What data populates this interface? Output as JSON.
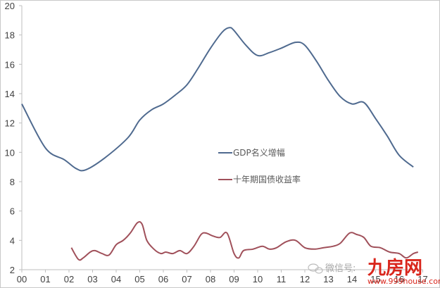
{
  "chart_data": {
    "type": "line",
    "title": "",
    "xlabel": "",
    "ylabel": "",
    "ylim": [
      2,
      20
    ],
    "yticks": [
      2,
      4,
      6,
      8,
      10,
      12,
      14,
      16,
      18,
      20
    ],
    "ytick_labels": [
      "2",
      "4",
      "6",
      "8",
      "10",
      "12",
      "14",
      "16",
      "18",
      "20"
    ],
    "xlim": [
      0,
      17
    ],
    "xticks": [
      0,
      1,
      2,
      3,
      4,
      5,
      6,
      7,
      8,
      9,
      10,
      11,
      12,
      13,
      14,
      15,
      16,
      17
    ],
    "xtick_labels": [
      "00",
      "01",
      "02",
      "03",
      "04",
      "05",
      "06",
      "07",
      "08",
      "09",
      "10",
      "11",
      "12",
      "13",
      "14",
      "15",
      "16",
      "17"
    ],
    "grid": false,
    "legend_position": "center-right (inside plot)",
    "series": [
      {
        "name": "GDP名义增幅",
        "color": "#4f6a8f",
        "x": [
          0,
          1,
          1.8,
          2.3,
          2.7,
          3.5,
          4.5,
          5,
          5.5,
          6,
          6.5,
          7,
          7.5,
          8,
          8.5,
          8.8,
          9,
          9.5,
          10,
          10.5,
          11,
          11.6,
          12,
          12.5,
          13,
          13.5,
          14,
          14.5,
          15,
          15.5,
          16,
          16.6
        ],
        "values": [
          13.3,
          10.3,
          9.5,
          8.9,
          8.8,
          9.6,
          11.0,
          12.2,
          12.9,
          13.3,
          13.9,
          14.6,
          15.8,
          17.1,
          18.2,
          18.5,
          18.3,
          17.3,
          16.6,
          16.8,
          17.1,
          17.5,
          17.3,
          16.2,
          14.9,
          13.8,
          13.3,
          13.4,
          12.3,
          11.1,
          9.8,
          9.0
        ]
      },
      {
        "name": "十年期国债收益率",
        "color": "#a0505a",
        "x": [
          2.1,
          2.4,
          2.6,
          2.9,
          3.1,
          3.4,
          3.7,
          4.0,
          4.3,
          4.6,
          4.9,
          5.1,
          5.3,
          5.6,
          5.9,
          6.1,
          6.4,
          6.7,
          7.0,
          7.3,
          7.6,
          7.8,
          8.1,
          8.4,
          8.7,
          9.0,
          9.2,
          9.4,
          9.8,
          10.2,
          10.5,
          10.8,
          11.2,
          11.6,
          12.0,
          12.4,
          12.8,
          13.2,
          13.5,
          13.9,
          14.2,
          14.5,
          14.8,
          15.2,
          15.6,
          16.0,
          16.3,
          16.6,
          16.8
        ],
        "values": [
          3.5,
          2.7,
          2.8,
          3.2,
          3.3,
          3.1,
          3.0,
          3.7,
          4.0,
          4.5,
          5.2,
          5.1,
          4.0,
          3.4,
          3.1,
          3.2,
          3.1,
          3.3,
          3.1,
          3.6,
          4.4,
          4.5,
          4.3,
          4.2,
          4.5,
          3.1,
          2.8,
          3.3,
          3.4,
          3.6,
          3.4,
          3.5,
          3.9,
          4.0,
          3.5,
          3.4,
          3.5,
          3.6,
          3.8,
          4.5,
          4.4,
          4.2,
          3.6,
          3.5,
          3.2,
          3.1,
          2.8,
          3.1,
          3.2
        ]
      }
    ]
  },
  "legend": {
    "items": [
      {
        "label": "GDP名义增幅",
        "color": "#4f6a8f"
      },
      {
        "label": "十年期国债收益率",
        "color": "#a0505a"
      }
    ]
  },
  "watermark": {
    "wechat_text": "微信号:",
    "logo_text": "九房网",
    "url_text": "www.999house.com"
  }
}
